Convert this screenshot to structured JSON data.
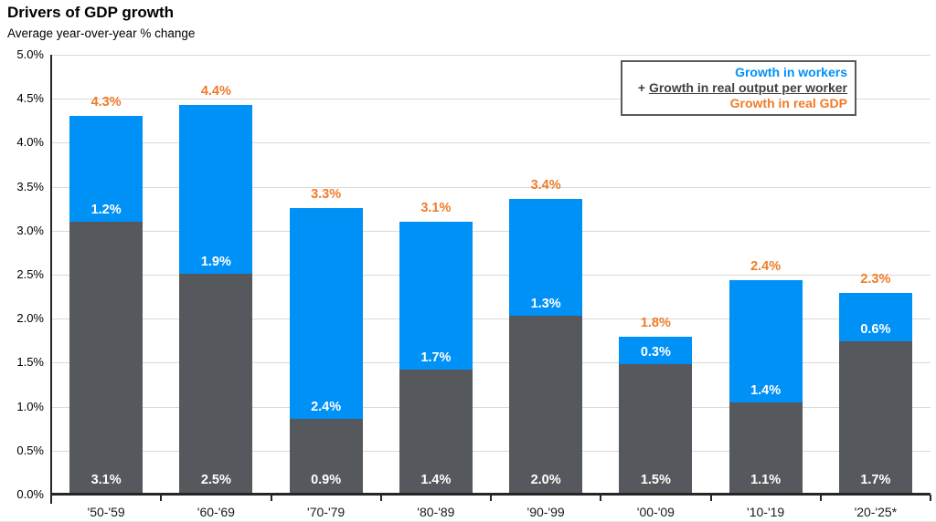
{
  "header": {
    "title": "Drivers of GDP growth",
    "subtitle": "Average year-over-year % change"
  },
  "legend": {
    "items": [
      {
        "label": "Growth in workers",
        "color": "#0091F7",
        "prefix": "",
        "underline": false
      },
      {
        "label": "Growth in real output per worker",
        "color": "#404040",
        "prefix": "+ ",
        "underline": true
      },
      {
        "label": "Growth in real GDP",
        "color": "#EF7B28",
        "prefix": "",
        "underline": false
      }
    ]
  },
  "chart_data": {
    "type": "bar",
    "stacked": true,
    "title": "Drivers of GDP growth",
    "subtitle": "Average year-over-year % change",
    "categories": [
      "'50-'59",
      "'60-'69",
      "'70-'79",
      "'80-'89",
      "'90-'99",
      "'00-'09",
      "'10-'19",
      "'20-'25*"
    ],
    "series": [
      {
        "name": "Growth in real output per worker",
        "color": "#55585C",
        "label_color": "#FFFFFF",
        "values": [
          3.1,
          2.5,
          0.9,
          1.4,
          2.0,
          1.5,
          1.1,
          1.7
        ],
        "render_values": [
          3.1,
          2.51,
          0.86,
          1.42,
          2.03,
          1.48,
          1.05,
          1.74
        ]
      },
      {
        "name": "Growth in workers",
        "color": "#0091F7",
        "label_color": "#FFFFFF",
        "values": [
          1.2,
          1.9,
          2.4,
          1.7,
          1.3,
          0.3,
          1.4,
          0.6
        ],
        "render_values": [
          1.2,
          1.92,
          2.4,
          1.68,
          1.33,
          0.31,
          1.39,
          0.55
        ]
      }
    ],
    "totals": {
      "name": "Growth in real GDP",
      "color": "#EF7B28",
      "values": [
        4.3,
        4.4,
        3.3,
        3.1,
        3.4,
        1.8,
        2.4,
        2.3
      ]
    },
    "y_axis": {
      "min": 0,
      "max": 5,
      "step": 0.5,
      "suffix": "%"
    },
    "value_suffix": "%",
    "grid": true,
    "legend_position": "top-right"
  }
}
